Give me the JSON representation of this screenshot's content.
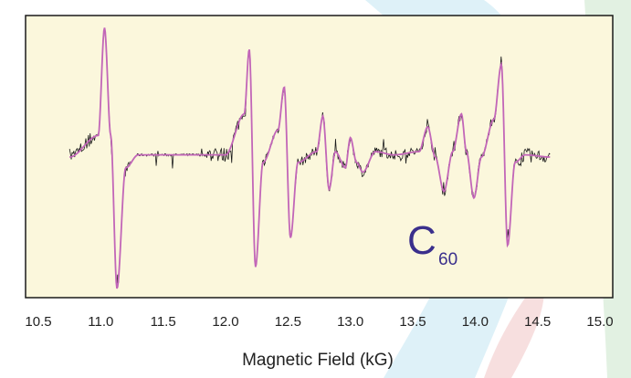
{
  "chart_data": {
    "type": "line",
    "title": "",
    "xlabel": "Magnetic Field (kG)",
    "ylabel": "",
    "xlim": [
      10.5,
      15.0
    ],
    "ylim": [
      -1.0,
      1.0
    ],
    "x_ticks": [
      "10.5",
      "11.0",
      "11.5",
      "12.0",
      "12.5",
      "13.0",
      "13.5",
      "14.0",
      "14.5",
      "15.0"
    ],
    "grid": false,
    "annotation": {
      "main": "C",
      "subscript": "60"
    },
    "colors": {
      "plot_background": "#fbf7dc",
      "experimental": "#1a1a1a",
      "simulation": "#c266b8",
      "annotation": "#3a2f8c"
    },
    "series": [
      {
        "style": "noisy-trace",
        "x": [
          10.75,
          10.98,
          11.03,
          11.08,
          11.13,
          11.2,
          11.3,
          11.5,
          12.0,
          12.15,
          12.19,
          12.24,
          12.3,
          12.42,
          12.47,
          12.52,
          12.58,
          12.73,
          12.78,
          12.83,
          12.88,
          12.96,
          13.0,
          13.05,
          13.1,
          13.2,
          13.35,
          13.55,
          13.62,
          13.68,
          13.75,
          13.82,
          13.89,
          13.93,
          13.99,
          14.05,
          14.15,
          14.21,
          14.26,
          14.32,
          14.4,
          14.6
        ],
        "y": [
          0.0,
          0.2,
          1.2,
          0.2,
          -1.22,
          -0.1,
          0.02,
          0.02,
          0.02,
          0.4,
          1.0,
          -1.02,
          -0.05,
          0.25,
          0.65,
          -0.75,
          -0.05,
          0.05,
          0.38,
          -0.3,
          0.05,
          -0.1,
          0.18,
          -0.05,
          -0.14,
          0.05,
          0.02,
          0.05,
          0.28,
          0.0,
          -0.32,
          0.05,
          0.4,
          0.05,
          -0.38,
          0.0,
          0.35,
          0.86,
          -0.82,
          -0.05,
          0.02,
          0.0
        ]
      },
      {
        "style": "smooth-fit",
        "x": [
          10.75,
          10.98,
          11.03,
          11.08,
          11.13,
          11.2,
          11.3,
          11.5,
          12.0,
          12.15,
          12.19,
          12.24,
          12.3,
          12.42,
          12.47,
          12.52,
          12.58,
          12.73,
          12.78,
          12.83,
          12.88,
          12.96,
          13.0,
          13.05,
          13.1,
          13.2,
          13.35,
          13.55,
          13.62,
          13.68,
          13.75,
          13.82,
          13.89,
          13.93,
          13.99,
          14.05,
          14.15,
          14.21,
          14.26,
          14.32,
          14.4,
          14.6
        ],
        "y": [
          0.0,
          0.2,
          1.2,
          0.2,
          -1.22,
          -0.1,
          0.02,
          0.02,
          0.02,
          0.4,
          1.0,
          -1.02,
          -0.05,
          0.25,
          0.65,
          -0.75,
          -0.05,
          0.05,
          0.38,
          -0.3,
          0.05,
          -0.1,
          0.18,
          -0.05,
          -0.14,
          0.05,
          0.02,
          0.05,
          0.28,
          0.0,
          -0.32,
          0.05,
          0.4,
          0.05,
          -0.38,
          0.0,
          0.35,
          0.86,
          -0.82,
          -0.05,
          0.02,
          0.0
        ]
      }
    ]
  }
}
